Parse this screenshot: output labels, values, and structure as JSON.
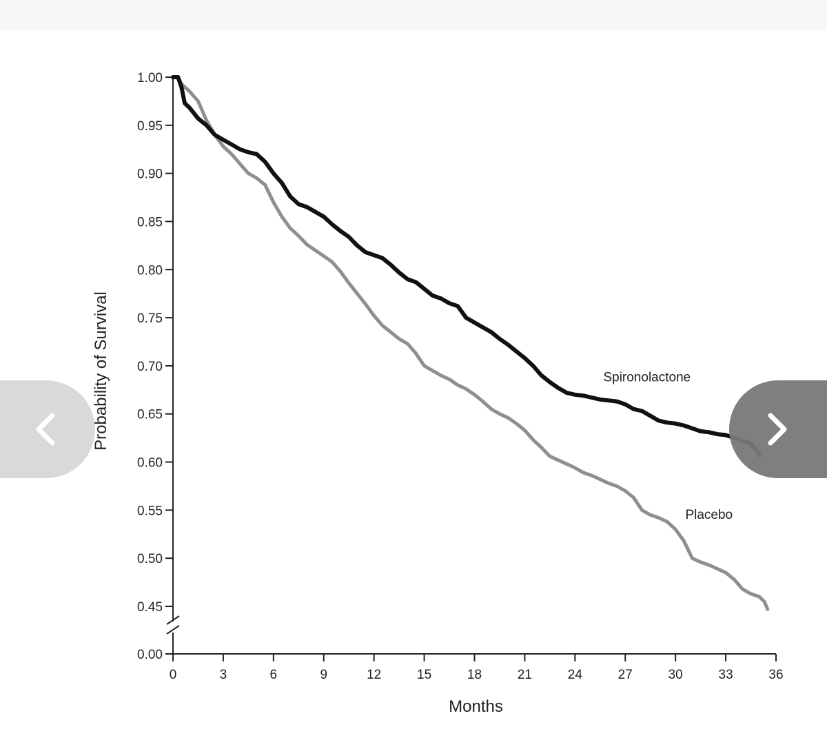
{
  "chart_data": {
    "type": "line",
    "xlabel": "Months",
    "ylabel": "Probability of Survival",
    "xlim": [
      0,
      36
    ],
    "x_ticks": [
      "0",
      "3",
      "6",
      "9",
      "12",
      "15",
      "18",
      "21",
      "24",
      "27",
      "30",
      "33",
      "36"
    ],
    "y_ticks": [
      "1.00",
      "0.95",
      "0.90",
      "0.85",
      "0.80",
      "0.75",
      "0.70",
      "0.65",
      "0.60",
      "0.55",
      "0.50",
      "0.45",
      "0.00"
    ],
    "y_axis_break": "between 0.45 and 0.00",
    "series": [
      {
        "name": "Spironolactone",
        "color": "#111111",
        "points": [
          [
            0,
            1.0
          ],
          [
            0.3,
            1.0
          ],
          [
            0.5,
            0.99
          ],
          [
            0.7,
            0.973
          ],
          [
            1.0,
            0.968
          ],
          [
            1.5,
            0.957
          ],
          [
            2.0,
            0.95
          ],
          [
            2.5,
            0.94
          ],
          [
            3.0,
            0.935
          ],
          [
            3.5,
            0.93
          ],
          [
            4.0,
            0.925
          ],
          [
            4.5,
            0.922
          ],
          [
            5.0,
            0.92
          ],
          [
            5.5,
            0.912
          ],
          [
            6.0,
            0.9
          ],
          [
            6.5,
            0.89
          ],
          [
            7.0,
            0.876
          ],
          [
            7.5,
            0.868
          ],
          [
            8.0,
            0.865
          ],
          [
            8.5,
            0.86
          ],
          [
            9.0,
            0.855
          ],
          [
            9.5,
            0.847
          ],
          [
            10.0,
            0.84
          ],
          [
            10.5,
            0.834
          ],
          [
            11.0,
            0.825
          ],
          [
            11.5,
            0.818
          ],
          [
            12.0,
            0.815
          ],
          [
            12.5,
            0.812
          ],
          [
            13.0,
            0.805
          ],
          [
            13.5,
            0.797
          ],
          [
            14.0,
            0.79
          ],
          [
            14.5,
            0.787
          ],
          [
            15.0,
            0.78
          ],
          [
            15.5,
            0.773
          ],
          [
            16.0,
            0.77
          ],
          [
            16.5,
            0.765
          ],
          [
            17.0,
            0.762
          ],
          [
            17.5,
            0.75
          ],
          [
            18.0,
            0.745
          ],
          [
            18.5,
            0.74
          ],
          [
            19.0,
            0.735
          ],
          [
            19.5,
            0.728
          ],
          [
            20.0,
            0.722
          ],
          [
            20.5,
            0.715
          ],
          [
            21.0,
            0.708
          ],
          [
            21.5,
            0.7
          ],
          [
            22.0,
            0.69
          ],
          [
            22.5,
            0.683
          ],
          [
            23.0,
            0.677
          ],
          [
            23.5,
            0.672
          ],
          [
            24.0,
            0.67
          ],
          [
            24.5,
            0.669
          ],
          [
            25.0,
            0.667
          ],
          [
            25.5,
            0.665
          ],
          [
            26.0,
            0.664
          ],
          [
            26.5,
            0.663
          ],
          [
            27.0,
            0.66
          ],
          [
            27.5,
            0.655
          ],
          [
            28.0,
            0.653
          ],
          [
            28.5,
            0.648
          ],
          [
            29.0,
            0.643
          ],
          [
            29.5,
            0.641
          ],
          [
            30.0,
            0.64
          ],
          [
            30.5,
            0.638
          ],
          [
            31.0,
            0.635
          ],
          [
            31.5,
            0.632
          ],
          [
            32.0,
            0.631
          ],
          [
            32.5,
            0.629
          ],
          [
            33.0,
            0.628
          ],
          [
            33.5,
            0.625
          ],
          [
            34.0,
            0.622
          ],
          [
            34.5,
            0.619
          ],
          [
            34.8,
            0.613
          ],
          [
            35.0,
            0.607
          ]
        ]
      },
      {
        "name": "Placebo",
        "color": "#8f8f8f",
        "points": [
          [
            0,
            1.0
          ],
          [
            0.3,
            1.0
          ],
          [
            0.5,
            0.993
          ],
          [
            1.0,
            0.985
          ],
          [
            1.5,
            0.975
          ],
          [
            2.0,
            0.955
          ],
          [
            2.5,
            0.94
          ],
          [
            3.0,
            0.928
          ],
          [
            3.5,
            0.92
          ],
          [
            4.0,
            0.91
          ],
          [
            4.5,
            0.9
          ],
          [
            5.0,
            0.895
          ],
          [
            5.5,
            0.888
          ],
          [
            6.0,
            0.87
          ],
          [
            6.5,
            0.855
          ],
          [
            7.0,
            0.843
          ],
          [
            7.5,
            0.835
          ],
          [
            8.0,
            0.826
          ],
          [
            8.5,
            0.82
          ],
          [
            9.0,
            0.814
          ],
          [
            9.5,
            0.808
          ],
          [
            10.0,
            0.798
          ],
          [
            10.5,
            0.786
          ],
          [
            11.0,
            0.775
          ],
          [
            11.5,
            0.764
          ],
          [
            12.0,
            0.752
          ],
          [
            12.5,
            0.742
          ],
          [
            13.0,
            0.735
          ],
          [
            13.5,
            0.728
          ],
          [
            14.0,
            0.723
          ],
          [
            14.5,
            0.713
          ],
          [
            15.0,
            0.7
          ],
          [
            15.5,
            0.695
          ],
          [
            16.0,
            0.69
          ],
          [
            16.5,
            0.686
          ],
          [
            17.0,
            0.68
          ],
          [
            17.5,
            0.676
          ],
          [
            18.0,
            0.67
          ],
          [
            18.5,
            0.663
          ],
          [
            19.0,
            0.655
          ],
          [
            19.5,
            0.65
          ],
          [
            20.0,
            0.646
          ],
          [
            20.5,
            0.64
          ],
          [
            21.0,
            0.633
          ],
          [
            21.5,
            0.623
          ],
          [
            22.0,
            0.615
          ],
          [
            22.5,
            0.606
          ],
          [
            23.0,
            0.602
          ],
          [
            23.5,
            0.598
          ],
          [
            24.0,
            0.594
          ],
          [
            24.5,
            0.589
          ],
          [
            25.0,
            0.586
          ],
          [
            25.5,
            0.582
          ],
          [
            26.0,
            0.578
          ],
          [
            26.5,
            0.575
          ],
          [
            27.0,
            0.57
          ],
          [
            27.5,
            0.563
          ],
          [
            28.0,
            0.55
          ],
          [
            28.5,
            0.545
          ],
          [
            29.0,
            0.542
          ],
          [
            29.5,
            0.538
          ],
          [
            30.0,
            0.53
          ],
          [
            30.5,
            0.518
          ],
          [
            31.0,
            0.5
          ],
          [
            31.5,
            0.496
          ],
          [
            32.0,
            0.493
          ],
          [
            32.5,
            0.489
          ],
          [
            33.0,
            0.485
          ],
          [
            33.5,
            0.478
          ],
          [
            34.0,
            0.468
          ],
          [
            34.5,
            0.463
          ],
          [
            35.0,
            0.46
          ],
          [
            35.3,
            0.455
          ],
          [
            35.5,
            0.447
          ]
        ]
      }
    ],
    "annotations": [
      {
        "text": "Spironolactone",
        "x": 28.3,
        "y": 0.684
      },
      {
        "text": "Placebo",
        "x": 32.0,
        "y": 0.541
      }
    ]
  },
  "nav": {
    "prev_icon": "chevron-left-icon",
    "next_icon": "chevron-right-icon"
  }
}
